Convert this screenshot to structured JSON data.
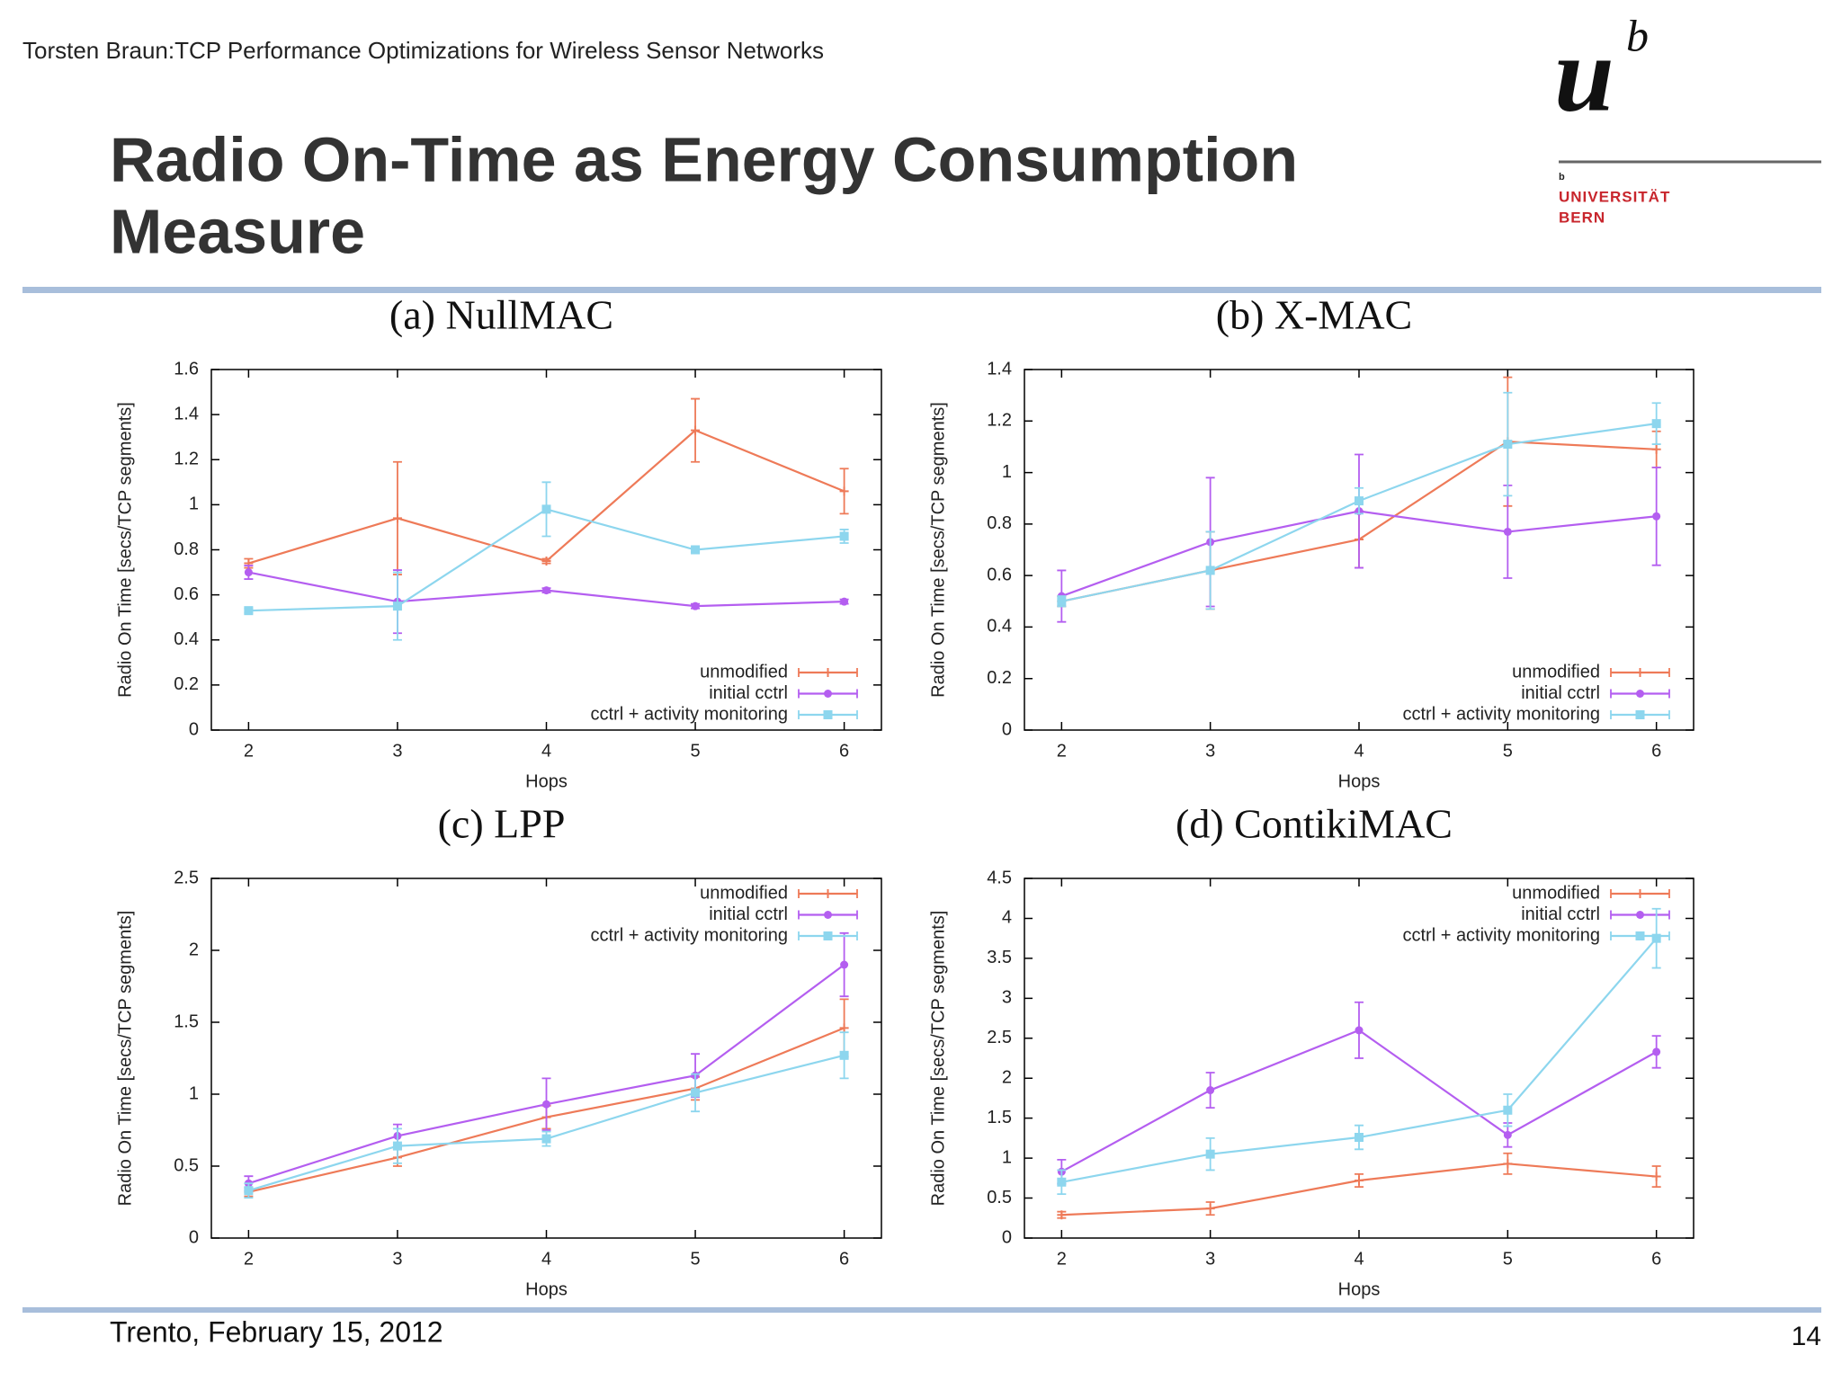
{
  "header": {
    "subtitle": "Torsten Braun:TCP Performance Optimizations for Wireless Sensor Networks",
    "title_lines": [
      "Radio On-Time as Energy Consumption",
      "Measure"
    ]
  },
  "logo": {
    "mark": "u",
    "superscript": "b",
    "small_mark": "b",
    "lines": [
      "UNIVERSITÄT",
      "BERN"
    ]
  },
  "footer": {
    "text": "Trento, February 15, 2012",
    "page": "14"
  },
  "chart_data": [
    {
      "type": "line",
      "title": "(a) NullMAC",
      "x_label": "Hops",
      "y_label": "Radio On Time [secs/TCP segments]",
      "x": [
        2,
        3,
        4,
        5,
        6
      ],
      "xlim": [
        1.75,
        6.25
      ],
      "xticks": [
        2,
        3,
        4,
        5,
        6
      ],
      "ylim": [
        0,
        1.6
      ],
      "yticks": [
        0,
        0.2,
        0.4,
        0.6,
        0.8,
        1,
        1.2,
        1.4,
        1.6
      ],
      "legend": "bottom-right",
      "series": [
        {
          "name": "unmodified",
          "color": "#ee7a58",
          "values": [
            0.74,
            0.94,
            0.75,
            1.33,
            1.06
          ],
          "errors": [
            0.02,
            0.25,
            0.01,
            0.14,
            0.1
          ]
        },
        {
          "name": "initial cctrl",
          "color": "#b45ef0",
          "values": [
            0.7,
            0.57,
            0.62,
            0.55,
            0.57
          ],
          "errors": [
            0.03,
            0.14,
            0.01,
            0.01,
            0.01
          ]
        },
        {
          "name": "cctrl + activity monitoring",
          "color": "#8dd6ee",
          "values": [
            0.53,
            0.55,
            0.98,
            0.8,
            0.86
          ],
          "errors": [
            0.01,
            0.15,
            0.12,
            0.01,
            0.03
          ]
        }
      ]
    },
    {
      "type": "line",
      "title": "(b) X-MAC",
      "x_label": "Hops",
      "y_label": "Radio On Time [secs/TCP segments]",
      "x": [
        2,
        3,
        4,
        5,
        6
      ],
      "xlim": [
        1.75,
        6.25
      ],
      "xticks": [
        2,
        3,
        4,
        5,
        6
      ],
      "ylim": [
        0,
        1.4
      ],
      "yticks": [
        0,
        0.2,
        0.4,
        0.6,
        0.8,
        1,
        1.2,
        1.4
      ],
      "legend": "bottom-right",
      "series": [
        {
          "name": "unmodified",
          "color": "#ee7a58",
          "values": [
            0.5,
            0.62,
            0.74,
            1.12,
            1.09
          ],
          "errors": [
            0.02,
            0.15,
            0.11,
            0.25,
            0.07
          ]
        },
        {
          "name": "initial cctrl",
          "color": "#b45ef0",
          "values": [
            0.52,
            0.73,
            0.85,
            0.77,
            0.83
          ],
          "errors": [
            0.1,
            0.25,
            0.22,
            0.18,
            0.19
          ]
        },
        {
          "name": "cctrl + activity monitoring",
          "color": "#8dd6ee",
          "values": [
            0.5,
            0.62,
            0.89,
            1.11,
            1.19
          ],
          "errors": [
            0.02,
            0.15,
            0.05,
            0.2,
            0.08
          ]
        }
      ]
    },
    {
      "type": "line",
      "title": "(c) LPP",
      "x_label": "Hops",
      "y_label": "Radio On Time [secs/TCP segments]",
      "x": [
        2,
        3,
        4,
        5,
        6
      ],
      "xlim": [
        1.75,
        6.25
      ],
      "xticks": [
        2,
        3,
        4,
        5,
        6
      ],
      "ylim": [
        0,
        2.5
      ],
      "yticks": [
        0,
        0.5,
        1,
        1.5,
        2,
        2.5
      ],
      "legend": "top-right",
      "series": [
        {
          "name": "unmodified",
          "color": "#ee7a58",
          "values": [
            0.32,
            0.56,
            0.84,
            1.04,
            1.46
          ],
          "errors": [
            0.03,
            0.06,
            0.08,
            0.08,
            0.2
          ]
        },
        {
          "name": "initial cctrl",
          "color": "#b45ef0",
          "values": [
            0.38,
            0.71,
            0.93,
            1.13,
            1.9
          ],
          "errors": [
            0.05,
            0.08,
            0.18,
            0.15,
            0.22
          ]
        },
        {
          "name": "cctrl + activity monitoring",
          "color": "#8dd6ee",
          "values": [
            0.33,
            0.64,
            0.69,
            1.01,
            1.27
          ],
          "errors": [
            0.05,
            0.12,
            0.05,
            0.13,
            0.16
          ]
        }
      ]
    },
    {
      "type": "line",
      "title": "(d) ContikiMAC",
      "x_label": "Hops",
      "y_label": "Radio On Time [secs/TCP segments]",
      "x": [
        2,
        3,
        4,
        5,
        6
      ],
      "xlim": [
        1.75,
        6.25
      ],
      "xticks": [
        2,
        3,
        4,
        5,
        6
      ],
      "ylim": [
        0,
        4.5
      ],
      "yticks": [
        0,
        0.5,
        1,
        1.5,
        2,
        2.5,
        3,
        3.5,
        4,
        4.5
      ],
      "legend": "top-right",
      "series": [
        {
          "name": "unmodified",
          "color": "#ee7a58",
          "values": [
            0.29,
            0.37,
            0.72,
            0.93,
            0.77
          ],
          "errors": [
            0.04,
            0.08,
            0.08,
            0.13,
            0.13
          ]
        },
        {
          "name": "initial cctrl",
          "color": "#b45ef0",
          "values": [
            0.83,
            1.85,
            2.6,
            1.29,
            2.33
          ],
          "errors": [
            0.15,
            0.22,
            0.35,
            0.15,
            0.2
          ]
        },
        {
          "name": "cctrl + activity monitoring",
          "color": "#8dd6ee",
          "values": [
            0.7,
            1.05,
            1.26,
            1.6,
            3.75
          ],
          "errors": [
            0.15,
            0.2,
            0.15,
            0.2,
            0.37
          ]
        }
      ]
    }
  ]
}
